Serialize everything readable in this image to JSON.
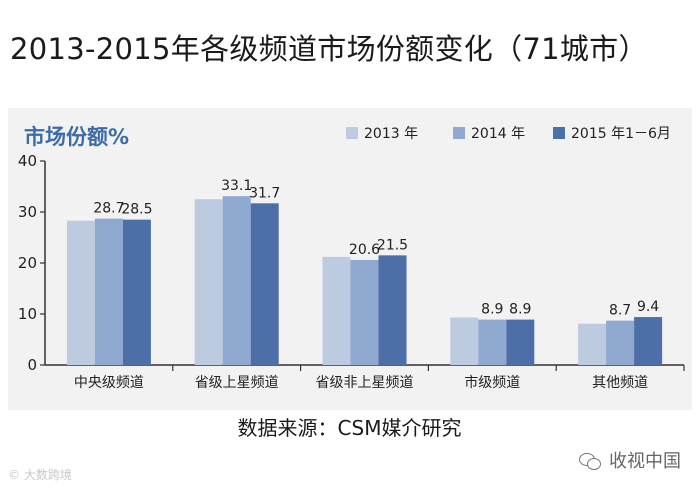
{
  "page_title": "2013-2015年各级频道市场份额变化（71城市）",
  "source_note": "数据来源：CSM媒介研究",
  "watermark_left": "© 大数跨境",
  "watermark_right": "收视中国",
  "chart_data": {
    "type": "bar",
    "title": "市场份额%",
    "categories": [
      "中央级频道",
      "省级上星频道",
      "省级非上星频道",
      "市级频道",
      "其他频道"
    ],
    "series": [
      {
        "name": "2013 年",
        "color": "#bdcbe0",
        "values": [
          28.3,
          32.5,
          21.2,
          9.3,
          8.1
        ]
      },
      {
        "name": "2014 年",
        "color": "#8fa9d1",
        "values": [
          28.7,
          33.1,
          20.6,
          8.9,
          8.7
        ]
      },
      {
        "name": "2015 年1－6月",
        "color": "#4c6fa9",
        "values": [
          28.5,
          31.7,
          21.5,
          8.9,
          9.4
        ]
      }
    ],
    "data_labels": [
      [
        null,
        28.7,
        28.5
      ],
      [
        null,
        33.1,
        31.7
      ],
      [
        null,
        20.6,
        21.5
      ],
      [
        null,
        8.9,
        8.9
      ],
      [
        null,
        8.7,
        9.4
      ]
    ],
    "ylim": [
      0,
      40
    ],
    "yticks": [
      0,
      10,
      20,
      30,
      40
    ],
    "legend_position": "top-right",
    "grid": false,
    "title_color": "#3b6ca8"
  }
}
